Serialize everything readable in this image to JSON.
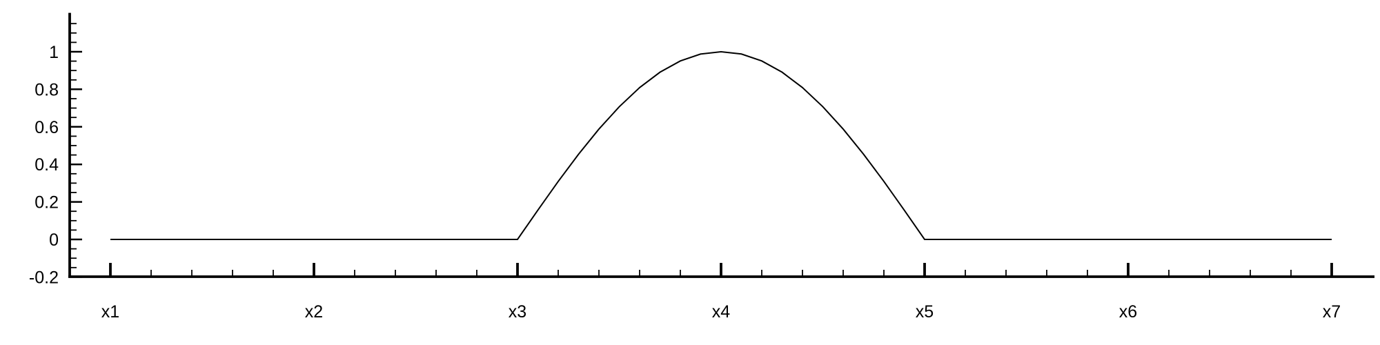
{
  "chart_data": {
    "type": "line",
    "title": "",
    "xlabel": "",
    "ylabel": "",
    "x_tick_labels": [
      "x1",
      "x2",
      "x3",
      "x4",
      "x5",
      "x6",
      "x7"
    ],
    "x_tick_positions": [
      1,
      2,
      3,
      4,
      5,
      6,
      7
    ],
    "xlim": [
      0.8,
      7.2
    ],
    "ylim": [
      -0.2,
      1.2
    ],
    "y_ticks": [
      -0.2,
      0,
      0.2,
      0.4,
      0.6,
      0.8,
      1
    ],
    "y_tick_labels": [
      "-0.2",
      "0",
      "0.2",
      "0.4",
      "0.6",
      "0.8",
      "1"
    ],
    "minor_x_per_major": 5,
    "minor_y_per_major": 4,
    "grid": false,
    "series": [
      {
        "line_color": "#000000",
        "x": [
          1,
          1.5,
          2,
          2.5,
          3,
          3.1,
          3.2,
          3.3,
          3.4,
          3.5,
          3.6,
          3.7,
          3.8,
          3.9,
          4,
          4.1,
          4.2,
          4.3,
          4.4,
          4.5,
          4.6,
          4.7,
          4.8,
          4.9,
          5,
          5.5,
          6,
          6.5,
          7
        ],
        "y": [
          0,
          0,
          0,
          0,
          0,
          0.156,
          0.309,
          0.454,
          0.588,
          0.707,
          0.809,
          0.891,
          0.951,
          0.988,
          1,
          0.988,
          0.951,
          0.891,
          0.809,
          0.707,
          0.588,
          0.454,
          0.309,
          0.156,
          0,
          0,
          0,
          0,
          0
        ]
      }
    ]
  }
}
